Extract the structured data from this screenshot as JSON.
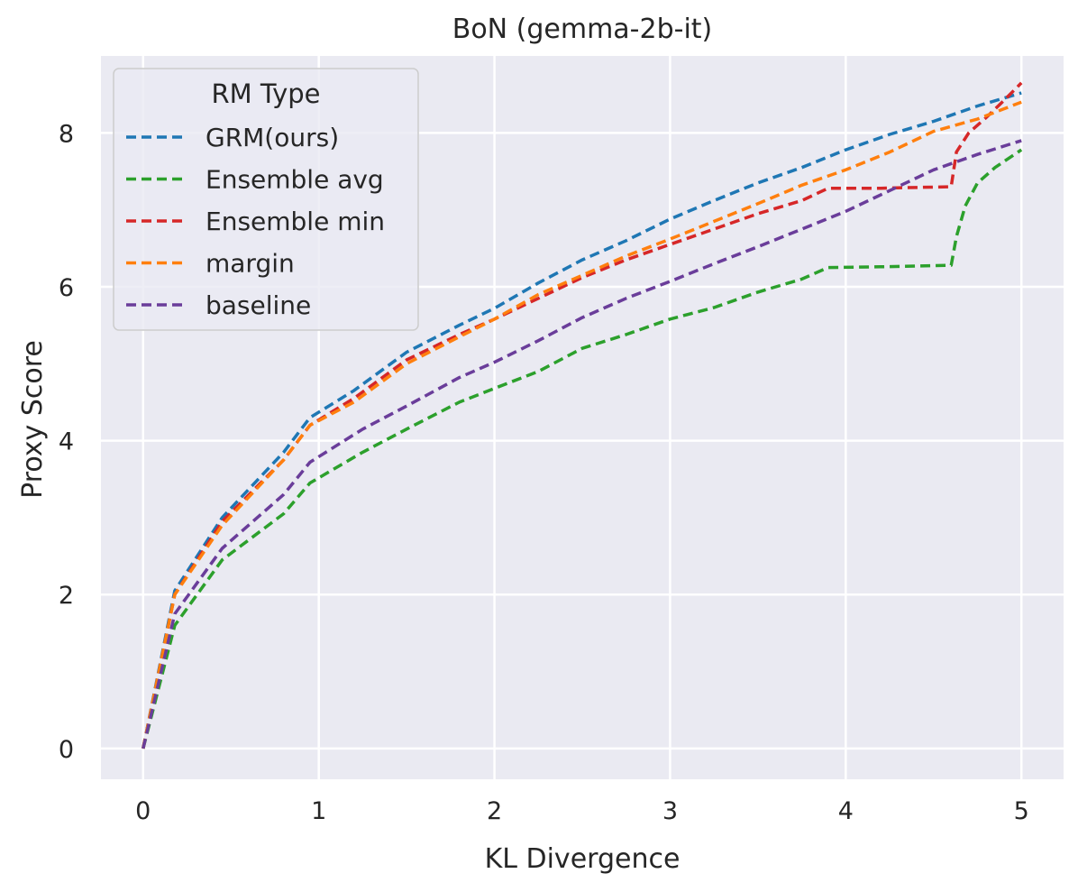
{
  "chart_data": {
    "type": "line",
    "title": "BoN (gemma-2b-it)",
    "xlabel": "KL Divergence",
    "ylabel": "Proxy Score",
    "xlim": [
      -0.24,
      5.24
    ],
    "ylim": [
      -0.4,
      9.0
    ],
    "xticks": [
      0,
      1,
      2,
      3,
      4,
      5
    ],
    "yticks": [
      0,
      2,
      4,
      6,
      8
    ],
    "grid": true,
    "background": "#eaeaf2",
    "legend": {
      "title": "RM Type",
      "placement": "top-left"
    },
    "series": [
      {
        "name": "GRM(ours)",
        "color": "#1f77b4",
        "points": [
          [
            0,
            0
          ],
          [
            0.18,
            2.05
          ],
          [
            0.45,
            3.0
          ],
          [
            0.8,
            3.85
          ],
          [
            0.95,
            4.3
          ],
          [
            1.2,
            4.65
          ],
          [
            1.5,
            5.15
          ],
          [
            1.8,
            5.5
          ],
          [
            2.0,
            5.72
          ],
          [
            2.25,
            6.05
          ],
          [
            2.5,
            6.35
          ],
          [
            2.75,
            6.6
          ],
          [
            3.0,
            6.88
          ],
          [
            3.25,
            7.12
          ],
          [
            3.5,
            7.35
          ],
          [
            3.75,
            7.55
          ],
          [
            4.0,
            7.78
          ],
          [
            4.25,
            7.98
          ],
          [
            4.5,
            8.15
          ],
          [
            4.75,
            8.35
          ],
          [
            5.0,
            8.52
          ]
        ]
      },
      {
        "name": "Ensemble avg",
        "color": "#2ca02c",
        "points": [
          [
            0,
            0
          ],
          [
            0.18,
            1.6
          ],
          [
            0.45,
            2.45
          ],
          [
            0.8,
            3.05
          ],
          [
            0.95,
            3.45
          ],
          [
            1.25,
            3.85
          ],
          [
            1.5,
            4.15
          ],
          [
            1.8,
            4.5
          ],
          [
            2.0,
            4.68
          ],
          [
            2.25,
            4.9
          ],
          [
            2.5,
            5.2
          ],
          [
            2.75,
            5.38
          ],
          [
            3.0,
            5.58
          ],
          [
            3.25,
            5.73
          ],
          [
            3.5,
            5.93
          ],
          [
            3.75,
            6.1
          ],
          [
            3.9,
            6.25
          ],
          [
            4.2,
            6.26
          ],
          [
            4.6,
            6.28
          ],
          [
            4.63,
            6.65
          ],
          [
            4.68,
            7.05
          ],
          [
            4.75,
            7.35
          ],
          [
            4.85,
            7.55
          ],
          [
            5.0,
            7.78
          ]
        ]
      },
      {
        "name": "Ensemble min",
        "color": "#d62728",
        "points": [
          [
            0,
            0
          ],
          [
            0.18,
            2.0
          ],
          [
            0.45,
            2.95
          ],
          [
            0.8,
            3.75
          ],
          [
            0.95,
            4.2
          ],
          [
            1.2,
            4.55
          ],
          [
            1.5,
            5.05
          ],
          [
            1.8,
            5.38
          ],
          [
            2.0,
            5.58
          ],
          [
            2.25,
            5.85
          ],
          [
            2.5,
            6.12
          ],
          [
            2.75,
            6.35
          ],
          [
            3.0,
            6.55
          ],
          [
            3.25,
            6.75
          ],
          [
            3.5,
            6.95
          ],
          [
            3.75,
            7.12
          ],
          [
            3.9,
            7.28
          ],
          [
            4.2,
            7.28
          ],
          [
            4.6,
            7.3
          ],
          [
            4.63,
            7.75
          ],
          [
            4.7,
            8.0
          ],
          [
            4.8,
            8.2
          ],
          [
            4.9,
            8.42
          ],
          [
            5.0,
            8.65
          ]
        ]
      },
      {
        "name": "margin",
        "color": "#ff7f0e",
        "points": [
          [
            0,
            0
          ],
          [
            0.18,
            2.0
          ],
          [
            0.45,
            2.9
          ],
          [
            0.8,
            3.75
          ],
          [
            0.95,
            4.2
          ],
          [
            1.2,
            4.5
          ],
          [
            1.5,
            5.0
          ],
          [
            1.8,
            5.35
          ],
          [
            2.0,
            5.58
          ],
          [
            2.25,
            5.9
          ],
          [
            2.5,
            6.15
          ],
          [
            2.75,
            6.4
          ],
          [
            3.0,
            6.62
          ],
          [
            3.25,
            6.85
          ],
          [
            3.5,
            7.08
          ],
          [
            3.75,
            7.32
          ],
          [
            4.0,
            7.52
          ],
          [
            4.25,
            7.75
          ],
          [
            4.5,
            8.02
          ],
          [
            4.75,
            8.18
          ],
          [
            5.0,
            8.4
          ]
        ]
      },
      {
        "name": "baseline",
        "color": "#6a3d9a",
        "points": [
          [
            0,
            0
          ],
          [
            0.18,
            1.75
          ],
          [
            0.45,
            2.6
          ],
          [
            0.8,
            3.3
          ],
          [
            0.95,
            3.72
          ],
          [
            1.25,
            4.15
          ],
          [
            1.5,
            4.45
          ],
          [
            1.8,
            4.82
          ],
          [
            2.0,
            5.02
          ],
          [
            2.25,
            5.3
          ],
          [
            2.5,
            5.6
          ],
          [
            2.75,
            5.85
          ],
          [
            3.0,
            6.07
          ],
          [
            3.25,
            6.3
          ],
          [
            3.5,
            6.52
          ],
          [
            3.75,
            6.75
          ],
          [
            4.0,
            6.98
          ],
          [
            4.25,
            7.25
          ],
          [
            4.5,
            7.52
          ],
          [
            4.75,
            7.72
          ],
          [
            5.0,
            7.9
          ]
        ]
      }
    ]
  }
}
